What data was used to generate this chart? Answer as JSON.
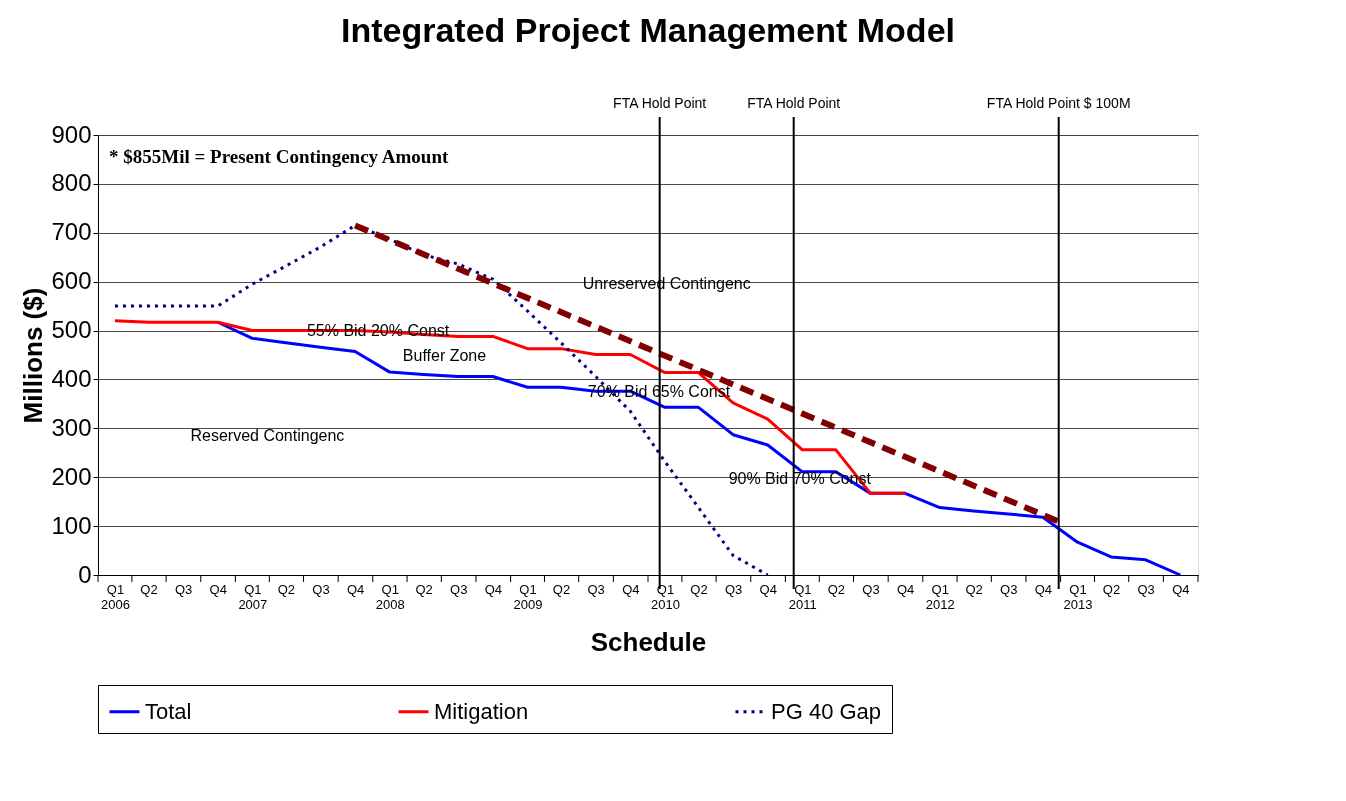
{
  "chart_data": {
    "type": "line",
    "title": "Integrated Project Management Model",
    "xlabel": "Schedule",
    "ylabel": "Millions ($)",
    "x": [
      "2006-02-15",
      "2006-05-15",
      "2006-08-15",
      "2006-11-15",
      "2007-02-15",
      "2007-05-15",
      "2007-08-15",
      "2007-11-15",
      "2008-02-15",
      "2008-05-15",
      "2008-08-15",
      "2008-11-15",
      "2009-02-15",
      "2009-05-15",
      "2009-08-15",
      "2009-11-15",
      "2010-02-15",
      "2010-05-15",
      "2010-08-15",
      "2010-11-15",
      "2011-02-15",
      "2011-05-15",
      "2011-08-15",
      "2011-11-15",
      "2012-02-15",
      "2012-05-15",
      "2012-08-15",
      "2012-11-15",
      "2013-02-15",
      "2013-05-15",
      "2013-08-15",
      "2013-11-15"
    ],
    "series": [
      {
        "name": "Total",
        "color": "#0000ff",
        "line_style": "solid",
        "values": [
          null,
          null,
          null,
          517,
          484,
          475,
          466,
          457,
          415,
          410,
          406,
          406,
          384,
          384,
          376,
          376,
          343,
          343,
          287,
          266,
          211,
          211,
          167,
          167,
          138,
          131,
          125,
          118,
          67,
          37,
          31,
          0
        ]
      },
      {
        "name": "Mitigation",
        "color": "#ff0000",
        "line_style": "solid",
        "values": [
          520,
          517,
          517,
          517,
          500,
          500,
          500,
          500,
          497,
          492,
          488,
          488,
          463,
          463,
          451,
          451,
          414,
          414,
          352,
          319,
          256,
          256,
          167,
          167,
          null,
          null,
          null,
          null,
          null,
          null,
          null,
          null
        ]
      },
      {
        "name": "PG 40 Gap",
        "color": "#000080",
        "line_style": "dotted",
        "values": [
          550,
          550,
          550,
          550,
          595,
          632,
          671,
          715,
          687,
          655,
          636,
          605,
          540,
          475,
          406,
          335,
          232,
          138,
          40,
          0,
          null,
          null,
          null,
          null,
          null,
          null,
          null,
          null,
          null,
          null,
          null,
          null
        ]
      },
      {
        "color": "#800000",
        "line_style": "dashed",
        "x": [
          "2007-11-15",
          "2013-01-01"
        ],
        "values": [
          715,
          108
        ]
      }
    ],
    "xlim": [
      "2006-01-01",
      "2014-01-01"
    ],
    "ylim": [
      0,
      900
    ],
    "yticks": [
      0,
      100,
      200,
      300,
      400,
      500,
      600,
      700,
      800,
      900
    ],
    "xticks": [
      {
        "value": "2006-01-01",
        "label": null
      },
      {
        "value": "2006-02-15",
        "label": "Q1\n2006"
      },
      {
        "value": "2006-04-01",
        "label": null
      },
      {
        "value": "2006-05-15",
        "label": "Q2"
      },
      {
        "value": "2006-07-01",
        "label": null
      },
      {
        "value": "2006-08-15",
        "label": "Q3"
      },
      {
        "value": "2006-10-01",
        "label": null
      },
      {
        "value": "2006-11-15",
        "label": "Q4"
      },
      {
        "value": "2007-01-01",
        "label": null
      },
      {
        "value": "2007-02-15",
        "label": "Q1\n2007"
      },
      {
        "value": "2007-04-01",
        "label": null
      },
      {
        "value": "2007-05-15",
        "label": "Q2"
      },
      {
        "value": "2007-07-01",
        "label": null
      },
      {
        "value": "2007-08-15",
        "label": "Q3"
      },
      {
        "value": "2007-10-01",
        "label": null
      },
      {
        "value": "2007-11-15",
        "label": "Q4"
      },
      {
        "value": "2008-01-01",
        "label": null
      },
      {
        "value": "2008-02-15",
        "label": "Q1\n2008"
      },
      {
        "value": "2008-04-01",
        "label": null
      },
      {
        "value": "2008-05-15",
        "label": "Q2"
      },
      {
        "value": "2008-07-01",
        "label": null
      },
      {
        "value": "2008-08-15",
        "label": "Q3"
      },
      {
        "value": "2008-10-01",
        "label": null
      },
      {
        "value": "2008-11-15",
        "label": "Q4"
      },
      {
        "value": "2009-01-01",
        "label": null
      },
      {
        "value": "2009-02-15",
        "label": "Q1\n2009"
      },
      {
        "value": "2009-04-01",
        "label": null
      },
      {
        "value": "2009-05-15",
        "label": "Q2"
      },
      {
        "value": "2009-07-01",
        "label": null
      },
      {
        "value": "2009-08-15",
        "label": "Q3"
      },
      {
        "value": "2009-10-01",
        "label": null
      },
      {
        "value": "2009-11-15",
        "label": "Q4"
      },
      {
        "value": "2010-01-01",
        "label": null
      },
      {
        "value": "2010-02-15",
        "label": "Q1\n2010"
      },
      {
        "value": "2010-04-01",
        "label": null
      },
      {
        "value": "2010-05-15",
        "label": "Q2"
      },
      {
        "value": "2010-07-01",
        "label": null
      },
      {
        "value": "2010-08-15",
        "label": "Q3"
      },
      {
        "value": "2010-10-01",
        "label": null
      },
      {
        "value": "2010-11-15",
        "label": "Q4"
      },
      {
        "value": "2011-01-01",
        "label": null
      },
      {
        "value": "2011-02-15",
        "label": "Q1\n2011"
      },
      {
        "value": "2011-04-01",
        "label": null
      },
      {
        "value": "2011-05-15",
        "label": "Q2"
      },
      {
        "value": "2011-07-01",
        "label": null
      },
      {
        "value": "2011-08-15",
        "label": "Q3"
      },
      {
        "value": "2011-10-01",
        "label": null
      },
      {
        "value": "2011-11-15",
        "label": "Q4"
      },
      {
        "value": "2012-01-01",
        "label": null
      },
      {
        "value": "2012-02-15",
        "label": "Q1\n2012"
      },
      {
        "value": "2012-04-01",
        "label": null
      },
      {
        "value": "2012-05-15",
        "label": "Q2"
      },
      {
        "value": "2012-07-01",
        "label": null
      },
      {
        "value": "2012-08-15",
        "label": "Q3"
      },
      {
        "value": "2012-10-01",
        "label": null
      },
      {
        "value": "2012-11-15",
        "label": "Q4"
      },
      {
        "value": "2013-01-01",
        "label": null
      },
      {
        "value": "2013-02-15",
        "label": "Q1\n2013"
      },
      {
        "value": "2013-04-01",
        "label": null
      },
      {
        "value": "2013-05-15",
        "label": "Q2"
      },
      {
        "value": "2013-07-01",
        "label": null
      },
      {
        "value": "2013-08-15",
        "label": "Q3"
      },
      {
        "value": "2013-10-01",
        "label": null
      },
      {
        "value": "2013-11-15",
        "label": "Q4"
      },
      {
        "value": "2014-01-01",
        "label": null
      }
    ],
    "grid": "y",
    "legend": "bottom",
    "ref_lines": [
      {
        "axis": "x",
        "value": "2010-02-01",
        "label": "FTA Hold Point",
        "color": "#000000"
      },
      {
        "axis": "x",
        "value": "2011-01-23",
        "label": "FTA Hold Point",
        "color": "#000000"
      },
      {
        "axis": "x",
        "value": "2012-12-27",
        "label": "FTA Hold Point $ 100M",
        "color": "#000000"
      }
    ],
    "annotations": [
      "* $855Mil = Present Contingency Amount",
      {
        "text": "55% Bid 20% Const",
        "x": "2008-01-15",
        "y": 500
      },
      "Buffer Zone",
      "Reserved Contingenc",
      "Unreserved Contingenc",
      "70% Bid 65% Const",
      "90% Bid 70% Const"
    ]
  }
}
